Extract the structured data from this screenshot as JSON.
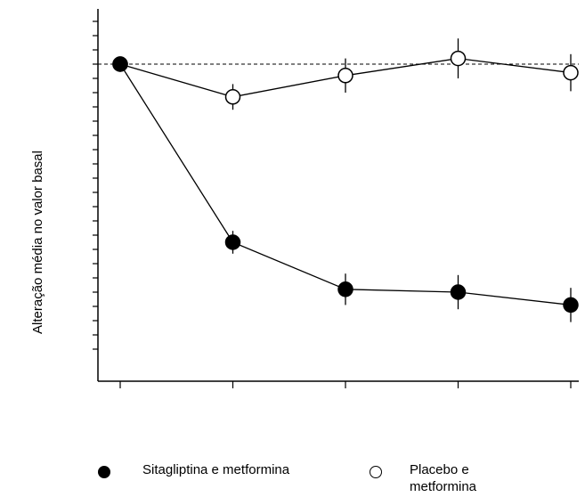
{
  "chart_data": {
    "type": "line",
    "title": "",
    "xlabel": "",
    "ylabel": "Alteração média no valor basal",
    "x": [
      0,
      1,
      2,
      3,
      4
    ],
    "xlim": [
      -0.05,
      4.05
    ],
    "ylim": [
      -2.2,
      0.4
    ],
    "x_tick_labels": [],
    "y_tick_labels": [],
    "y_ticks": [
      0.3,
      0.2,
      0.1,
      0,
      -0.1,
      -0.2,
      -0.3,
      -0.4,
      -0.5,
      -0.6,
      -0.7,
      -0.8,
      -0.9,
      -1.0,
      -1.1,
      -1.2,
      -1.3,
      -1.4,
      -1.5,
      -1.6,
      -1.7,
      -1.8,
      -1.9,
      -2.0
    ],
    "reference_line": {
      "y": 0,
      "style": "dashed"
    },
    "grid": false,
    "legend_position": "bottom",
    "series": [
      {
        "name": "Sitagliptina e metformina",
        "marker": "filled-circle",
        "color": "#000000",
        "values": [
          0,
          -1.25,
          -1.58,
          -1.6,
          -1.69
        ],
        "errors": [
          0,
          0.08,
          0.11,
          0.12,
          0.12
        ]
      },
      {
        "name": "Placebo e metformina",
        "marker": "open-circle",
        "color": "#000000",
        "values": [
          0,
          -0.23,
          -0.08,
          0.04,
          -0.06
        ],
        "errors": [
          0,
          0.09,
          0.12,
          0.14,
          0.13
        ]
      }
    ]
  },
  "legend": {
    "items": [
      {
        "label": "Sitagliptina e metformina",
        "marker": "filled-circle"
      },
      {
        "label": "Placebo e metformina",
        "marker": "open-circle"
      }
    ]
  }
}
